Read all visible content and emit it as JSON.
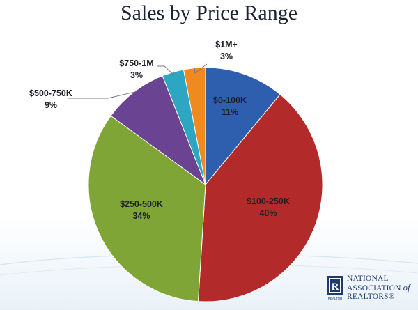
{
  "chart_data": {
    "type": "pie",
    "title": "Sales by Price Range",
    "slices": [
      {
        "category": "$0-100K",
        "value": 11,
        "value_label": "11%",
        "color": "#2e5fae",
        "label_position": "inside"
      },
      {
        "category": "$100-250K",
        "value": 40,
        "value_label": "40%",
        "color": "#b22a2a",
        "label_position": "inside"
      },
      {
        "category": "$250-500K",
        "value": 34,
        "value_label": "34%",
        "color": "#7fa536",
        "label_position": "inside"
      },
      {
        "category": "$500-750K",
        "value": 9,
        "value_label": "9%",
        "color": "#6a4392",
        "label_position": "outside"
      },
      {
        "category": "$750-1M",
        "value": 3,
        "value_label": "3%",
        "color": "#2ca6c2",
        "label_position": "outside"
      },
      {
        "category": "$1M+",
        "value": 3,
        "value_label": "3%",
        "color": "#ee8a1f",
        "label_position": "outside"
      }
    ],
    "start": "12 o'clock",
    "direction": "clockwise",
    "legend": "none"
  },
  "logo": {
    "line1": "NATIONAL",
    "line2": "ASSOCIATION",
    "line2_suffix": "of",
    "line3": "REALTORS®",
    "mark_letter": "R",
    "mark_caption": "REALTOR",
    "color": "#1f3b6e"
  }
}
